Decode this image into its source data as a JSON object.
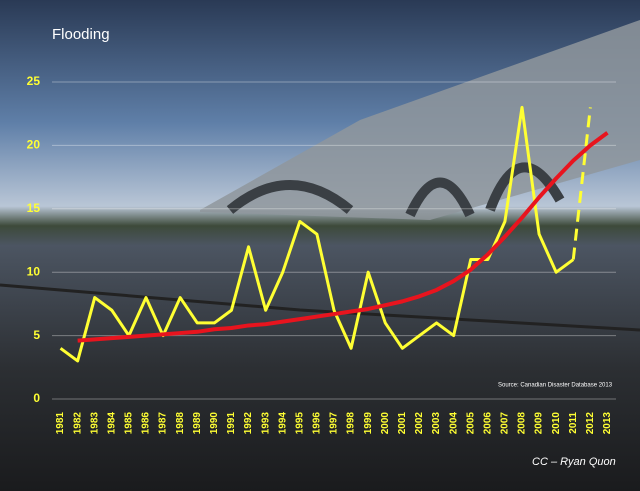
{
  "chart_data": {
    "type": "line",
    "title": "Flooding",
    "source": "Source: Canadian Disaster Database 2013",
    "credit": "CC – Ryan Quon",
    "categories": [
      "1981",
      "1982",
      "1983",
      "1984",
      "1985",
      "1986",
      "1987",
      "1988",
      "1989",
      "1990",
      "1991",
      "1992",
      "1993",
      "1994",
      "1995",
      "1996",
      "1997",
      "1998",
      "1999",
      "2000",
      "2001",
      "2002",
      "2003",
      "2004",
      "2005",
      "2006",
      "2007",
      "2008",
      "2009",
      "2010",
      "2011",
      "2012",
      "2013"
    ],
    "series": [
      {
        "color": "#ffff33",
        "values": [
          4,
          3,
          8,
          7,
          5,
          8,
          5,
          8,
          6,
          6,
          7,
          12,
          7,
          10,
          14,
          13,
          7,
          4,
          10,
          6,
          4,
          5,
          6,
          5,
          11,
          11,
          14,
          23,
          13,
          10,
          11,
          null,
          null
        ]
      },
      {
        "color": "#ffff33",
        "dashed": true,
        "values": [
          null,
          null,
          null,
          null,
          null,
          null,
          null,
          null,
          null,
          null,
          null,
          null,
          null,
          null,
          null,
          null,
          null,
          null,
          null,
          null,
          null,
          null,
          null,
          null,
          null,
          null,
          null,
          null,
          null,
          null,
          11,
          23,
          null
        ]
      },
      {
        "color": "#e8141e",
        "values": [
          null,
          4.6,
          4.7,
          4.8,
          4.9,
          5.0,
          5.1,
          5.2,
          5.3,
          5.5,
          5.6,
          5.8,
          5.9,
          6.1,
          6.3,
          6.5,
          6.7,
          6.9,
          7.1,
          7.4,
          7.7,
          8.1,
          8.6,
          9.3,
          10.2,
          11.4,
          12.8,
          14.3,
          15.9,
          17.4,
          18.8,
          20.0,
          21.0
        ]
      }
    ],
    "ylim": [
      0,
      25
    ],
    "yticks": [
      0,
      5,
      10,
      15,
      20,
      25
    ],
    "grid": true
  }
}
